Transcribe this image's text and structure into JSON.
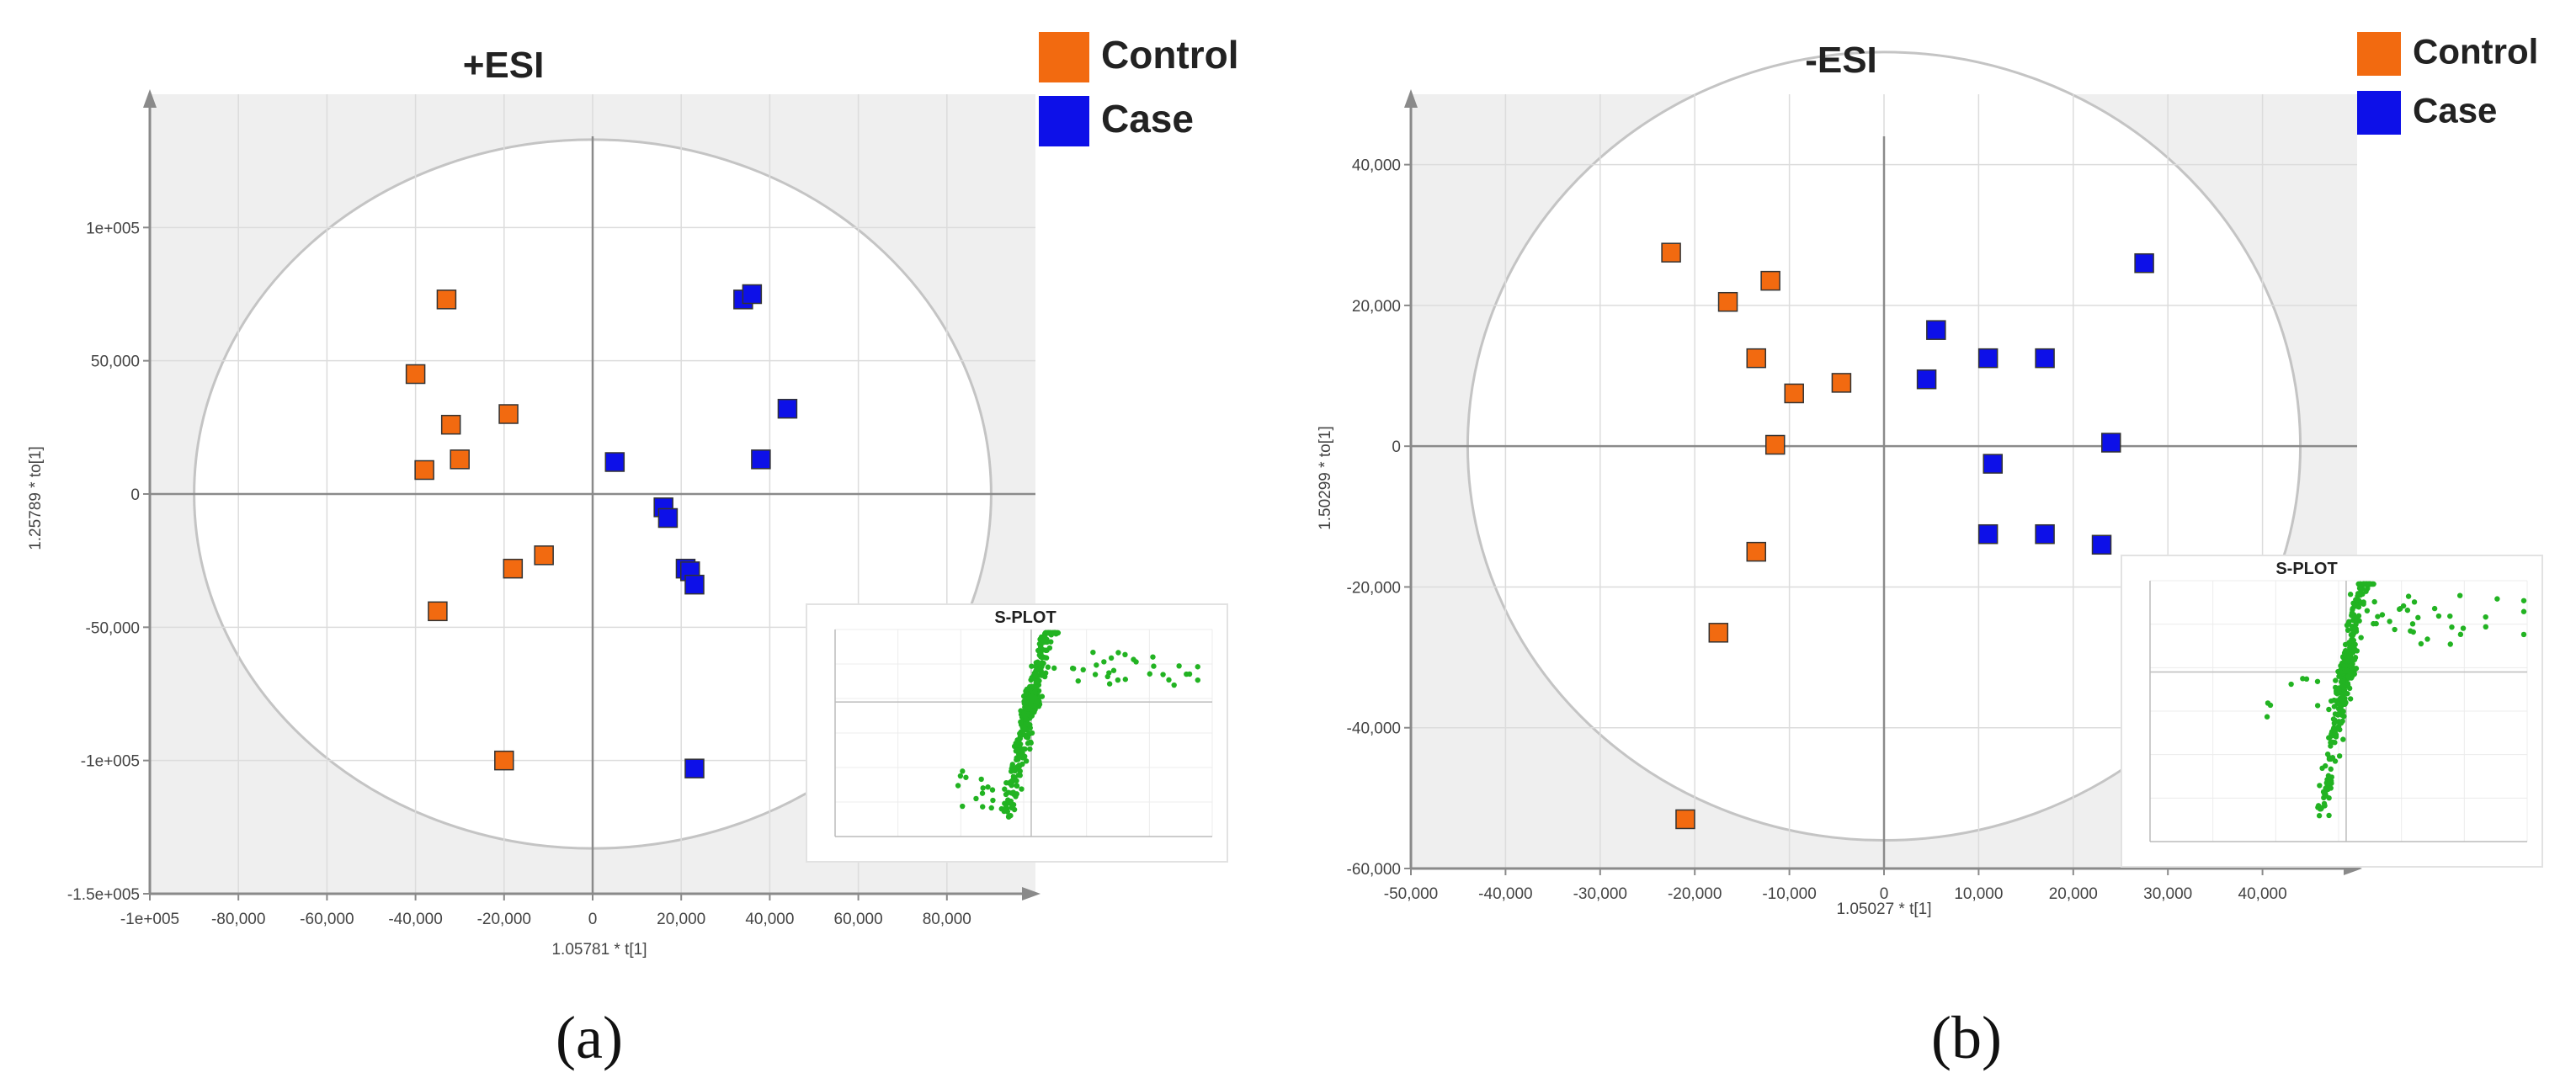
{
  "chart_data": [
    {
      "type": "scatter",
      "id": "a",
      "title": "+ESI",
      "xlabel": "1.05781 * t[1]",
      "ylabel": "1.25789 * to[1]",
      "xlim": [
        -100000,
        100000
      ],
      "ylim": [
        -150000,
        150000
      ],
      "xticks": [
        -100000,
        -80000,
        -60000,
        -40000,
        -20000,
        0,
        20000,
        40000,
        60000,
        80000
      ],
      "xtick_labels": [
        "-1e+005",
        "-80,000",
        "-60,000",
        "-40,000",
        "-20,000",
        "0",
        "20,000",
        "40,000",
        "60,000",
        "80,000"
      ],
      "yticks": [
        -150000,
        -100000,
        -50000,
        0,
        50000,
        100000
      ],
      "ytick_labels": [
        "-1.5e+005",
        "-1e+005",
        "-50,000",
        "0",
        "50,000",
        "1e+005"
      ],
      "ellipse": {
        "rx": 90000,
        "ry": 133000
      },
      "series": [
        {
          "name": "Control",
          "color": "#f26a10",
          "points": [
            [
              -33000,
              73000
            ],
            [
              -40000,
              45000
            ],
            [
              -32000,
              26000
            ],
            [
              -19000,
              30000
            ],
            [
              -30000,
              13000
            ],
            [
              -38000,
              9000
            ],
            [
              -11000,
              -23000
            ],
            [
              -18000,
              -28000
            ],
            [
              -35000,
              -44000
            ],
            [
              -20000,
              -100000
            ]
          ]
        },
        {
          "name": "Case",
          "color": "#0d10e8",
          "points": [
            [
              34000,
              73000
            ],
            [
              36000,
              75000
            ],
            [
              44000,
              32000
            ],
            [
              38000,
              13000
            ],
            [
              5000,
              12000
            ],
            [
              16000,
              -5000
            ],
            [
              17000,
              -9000
            ],
            [
              21000,
              -28000
            ],
            [
              22000,
              -29000
            ],
            [
              23000,
              -34000
            ],
            [
              23000,
              -103000
            ]
          ]
        }
      ],
      "legend": {
        "position": "top-right",
        "entries": [
          "Control",
          "Case"
        ]
      },
      "inset": {
        "title": "S-PLOT",
        "type": "scatter",
        "color": "#22b322"
      },
      "panel_label": "(a)"
    },
    {
      "type": "scatter",
      "id": "b",
      "title": "-ESI",
      "xlabel": "1.05027 * t[1]",
      "ylabel": "1.50299 * to[1]",
      "xlim": [
        -50000,
        50000
      ],
      "ylim": [
        -60000,
        50000
      ],
      "xticks": [
        -50000,
        -40000,
        -30000,
        -20000,
        -10000,
        0,
        10000,
        20000,
        30000,
        40000
      ],
      "xtick_labels": [
        "-50,000",
        "-40,000",
        "-30,000",
        "-20,000",
        "-10,000",
        "0",
        "10,000",
        "20,000",
        "30,000",
        "40,000"
      ],
      "yticks": [
        -60000,
        -40000,
        -20000,
        0,
        20000,
        40000
      ],
      "ytick_labels": [
        "-60,000",
        "-40,000",
        "-20,000",
        "0",
        "20,000",
        "40,000"
      ],
      "ellipse": {
        "rx": 44000,
        "ry": 56000
      },
      "series": [
        {
          "name": "Control",
          "color": "#f26a10",
          "points": [
            [
              -22500,
              27500
            ],
            [
              -16500,
              20500
            ],
            [
              -12000,
              23500
            ],
            [
              -13500,
              12500
            ],
            [
              -9500,
              7500
            ],
            [
              -4500,
              9000
            ],
            [
              -11500,
              200
            ],
            [
              -13500,
              -15000
            ],
            [
              -17500,
              -26500
            ],
            [
              -21000,
              -53000
            ]
          ]
        },
        {
          "name": "Case",
          "color": "#0d10e8",
          "points": [
            [
              27500,
              26000
            ],
            [
              5500,
              16500
            ],
            [
              11000,
              12500
            ],
            [
              17000,
              12500
            ],
            [
              4500,
              9500
            ],
            [
              11500,
              -2500
            ],
            [
              24000,
              500
            ],
            [
              11000,
              -12500
            ],
            [
              17000,
              -12500
            ],
            [
              23000,
              -14000
            ]
          ]
        }
      ],
      "legend": {
        "position": "top-right",
        "entries": [
          "Control",
          "Case"
        ]
      },
      "inset": {
        "title": "S-PLOT",
        "type": "scatter",
        "color": "#22b322"
      },
      "panel_label": "(b)"
    }
  ]
}
